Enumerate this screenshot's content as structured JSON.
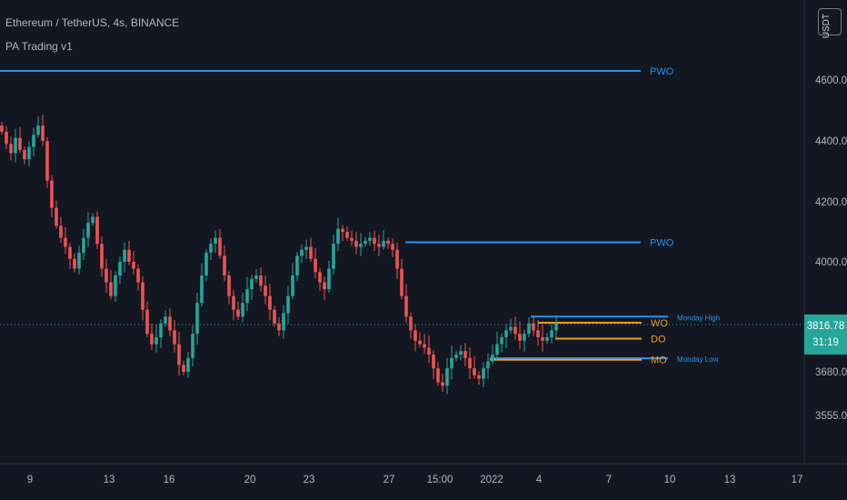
{
  "header": {
    "title": "Ethereum / TetherUS, 4s, BINANCE",
    "indicator": "PA Trading v1",
    "currency": "USDT"
  },
  "current_price": {
    "price": "3816.78",
    "countdown": "31:19"
  },
  "colors": {
    "up": "#26a69a",
    "down": "#ef5350",
    "blue": "#2962ff",
    "light_blue": "#2196f3",
    "orange": "#f39c12",
    "background": "#131722"
  },
  "chart_data": {
    "type": "candlestick",
    "y_ticks": [
      4600,
      4400,
      4200,
      4000,
      3680,
      3555
    ],
    "y_tick_labels": [
      "4600.00",
      "4400.00",
      "4200.00",
      "4000.00",
      "3680.00",
      "3555.00"
    ],
    "x_tick_labels": [
      "9",
      "13",
      "16",
      "20",
      "23",
      "27",
      "15:00",
      "2022",
      "4",
      "7",
      "10",
      "13",
      "17"
    ],
    "current_price": 3816.78,
    "levels": [
      {
        "label": "PWO",
        "price": 4630,
        "color": "#2196f3",
        "small": false
      },
      {
        "label": "PWO",
        "price": 4065,
        "color": "#2196f3",
        "small": false
      },
      {
        "label": "Monday High",
        "price": 3840,
        "color": "#2196f3",
        "small": true
      },
      {
        "label": "WO",
        "price": 3822,
        "color": "#f39c12",
        "small": false
      },
      {
        "label": "DO",
        "price": 3776,
        "color": "#f39c12",
        "small": false
      },
      {
        "label": "Monday Low",
        "price": 3719,
        "color": "#2196f3",
        "small": true
      },
      {
        "label": "MO",
        "price": 3715,
        "color": "#f39c12",
        "small": false
      }
    ],
    "candles_close": [
      4430,
      4390,
      4360,
      4410,
      4370,
      4340,
      4380,
      4420,
      4450,
      4400,
      4270,
      4180,
      4120,
      4080,
      4050,
      4010,
      3980,
      4030,
      4080,
      4130,
      4150,
      4060,
      3980,
      3940,
      3900,
      3960,
      4000,
      4040,
      4000,
      3980,
      3940,
      3860,
      3790,
      3760,
      3780,
      3820,
      3840,
      3800,
      3760,
      3700,
      3680,
      3720,
      3790,
      3880,
      3960,
      4030,
      4060,
      4080,
      4020,
      3960,
      3900,
      3860,
      3840,
      3880,
      3920,
      3950,
      3960,
      3930,
      3900,
      3860,
      3820,
      3800,
      3850,
      3900,
      3960,
      4020,
      4040,
      4050,
      4010,
      3970,
      3940,
      3920,
      3980,
      4060,
      4110,
      4100,
      4080,
      4070,
      4050,
      4060,
      4070,
      4080,
      4060,
      4050,
      4070,
      4060,
      4040,
      3980,
      3900,
      3840,
      3800,
      3770,
      3760,
      3750,
      3730,
      3690,
      3650,
      3640,
      3690,
      3720,
      3730,
      3740,
      3720,
      3690,
      3670,
      3660,
      3690,
      3710,
      3730,
      3760,
      3780,
      3800,
      3810,
      3790,
      3770,
      3790,
      3820,
      3800,
      3780,
      3770,
      3780,
      3800,
      3820
    ]
  }
}
